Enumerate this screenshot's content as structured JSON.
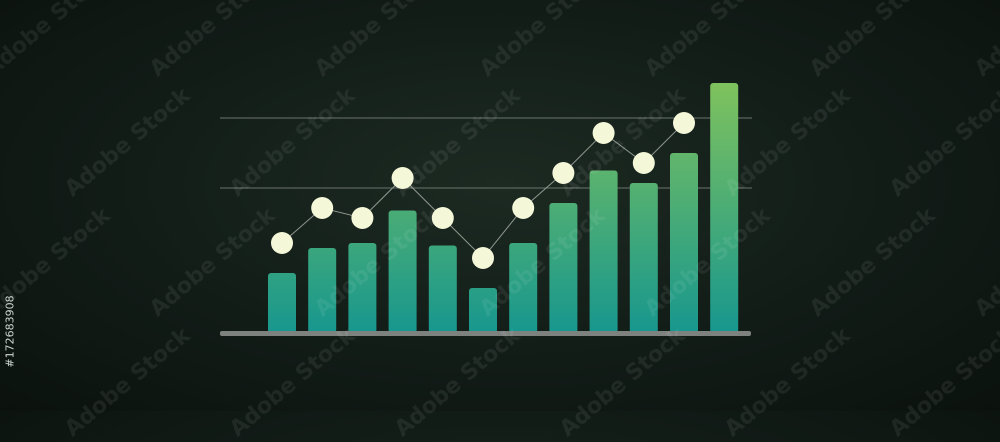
{
  "watermark": {
    "text": "Adobe Stock",
    "id": "#172683908"
  },
  "colors": {
    "bar_top": "#7fc25d",
    "bar_bottom": "#17978e",
    "dot": "#f4f7d8",
    "line": "#8f978f",
    "grid": "#6b736d",
    "baseline": "#7d827f"
  },
  "chart_data": {
    "type": "bar",
    "title": "",
    "xlabel": "",
    "ylabel": "",
    "ylim": [
      0,
      100
    ],
    "grid": {
      "horizontal_lines": [
        58,
        86
      ]
    },
    "legend": "none",
    "series": [
      {
        "type": "bar",
        "values": [
          24,
          34,
          36,
          49,
          35,
          18,
          36,
          52,
          65,
          60,
          72,
          100
        ]
      },
      {
        "type": "line",
        "markers": true,
        "values": [
          36,
          50,
          46,
          62,
          46,
          30,
          50,
          64,
          80,
          68,
          84
        ]
      }
    ]
  }
}
